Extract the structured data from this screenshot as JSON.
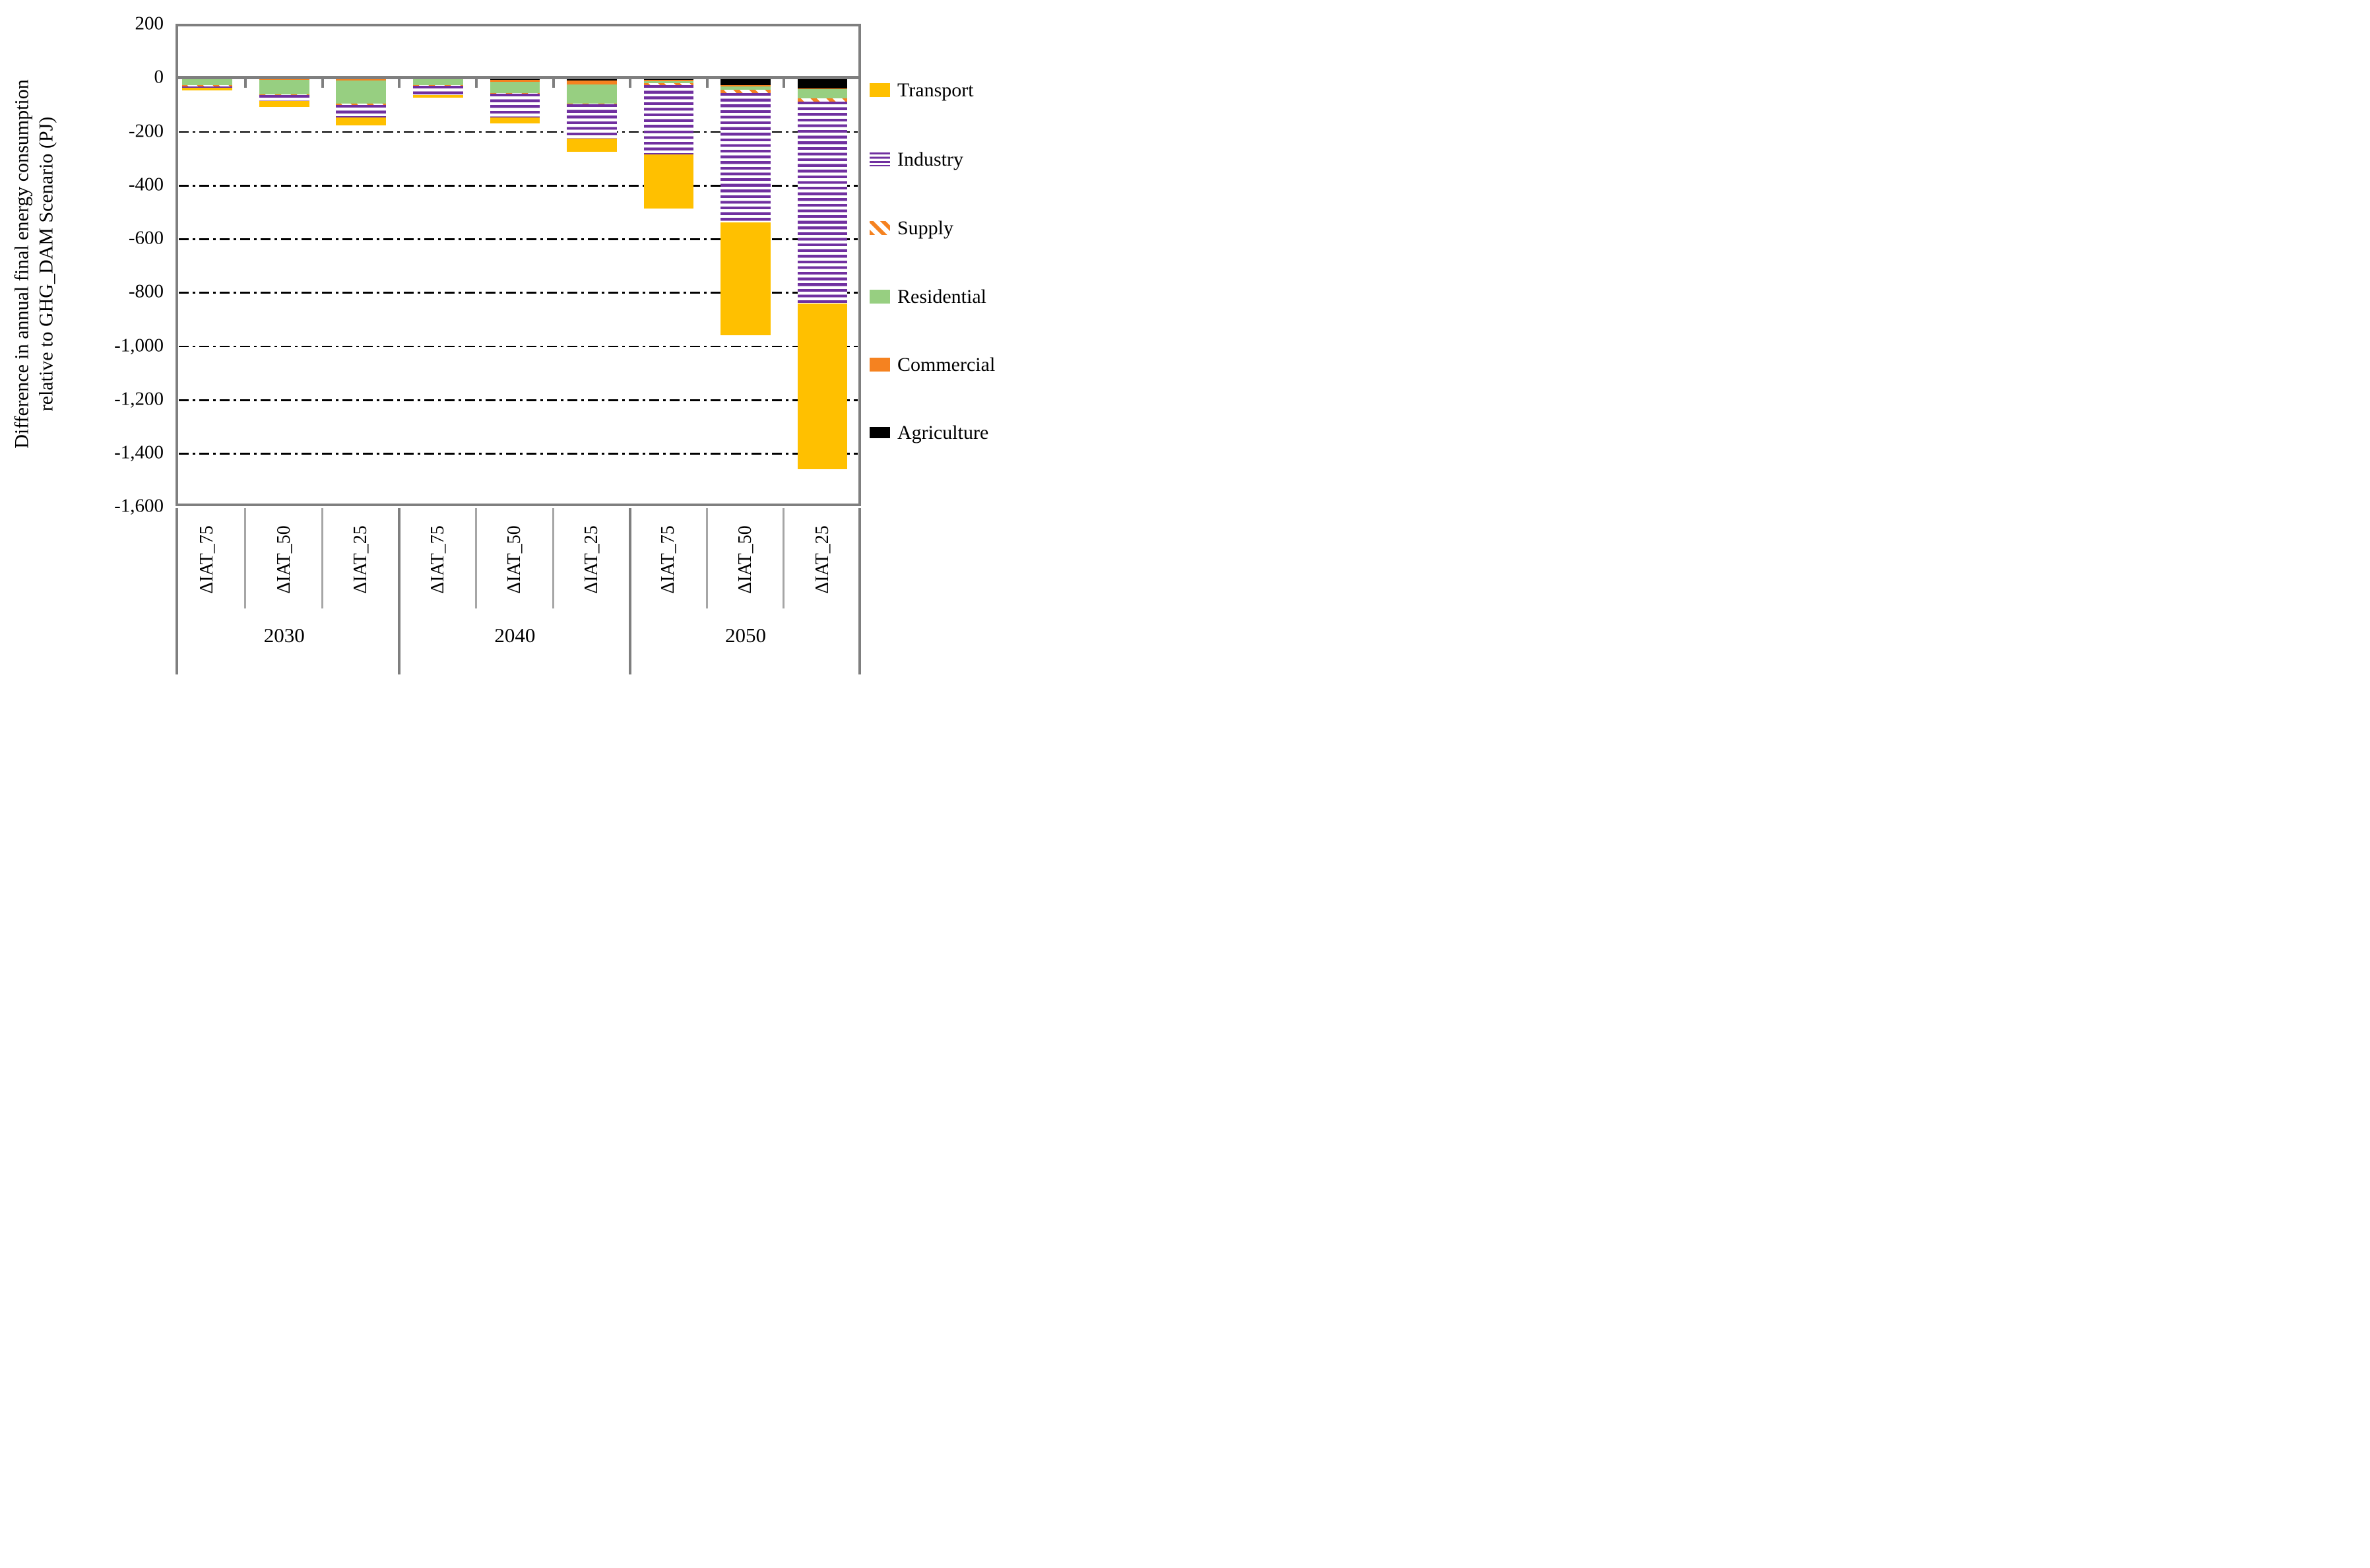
{
  "axis_title_line1": "Difference in annual final energy consumption",
  "axis_title_line2": "relative to GHG_DAM Scenario  (PJ)",
  "y_axis": {
    "ticks": [
      "200",
      "0",
      "-200",
      "-400",
      "-600",
      "-800",
      "-1,000",
      "-1,200",
      "-1,400",
      "-1,600"
    ],
    "min": -1600,
    "max": 200,
    "step": 200
  },
  "chart_data": {
    "type": "bar",
    "stacked": true,
    "unit": "PJ",
    "ylabel": "Difference in annual final energy consumption relative to GHG_DAM Scenario (PJ)",
    "ylim": [
      -1600,
      200
    ],
    "grid": "horizontal dash-dot",
    "legend_position": "right",
    "groups": [
      "2030",
      "2040",
      "2050"
    ],
    "categories": [
      "ΔIAT_75",
      "ΔIAT_50",
      "ΔIAT_25",
      "ΔIAT_75",
      "ΔIAT_50",
      "ΔIAT_25",
      "ΔIAT_75",
      "ΔIAT_50",
      "ΔIAT_25"
    ],
    "stack_order_from_zero": [
      "Agriculture",
      "Commercial",
      "Residential",
      "Supply",
      "Industry",
      "Transport"
    ],
    "series": [
      {
        "name": "Transport",
        "color": "#FFC000",
        "pattern": "solid",
        "values": [
          -10,
          -21,
          -31,
          -9,
          -24,
          -48,
          -201,
          -419,
          -617
        ]
      },
      {
        "name": "Industry",
        "color": "#7030A0",
        "pattern": "horizontal-stripes",
        "values": [
          -6,
          -23,
          -46,
          -35,
          -87,
          -128,
          -258,
          -484,
          -753
        ]
      },
      {
        "name": "Supply",
        "color": "#F58220",
        "pattern": "diagonal-dashes",
        "values": [
          -3,
          -3,
          -4,
          -2,
          -3,
          -4,
          -9,
          -11,
          -13
        ]
      },
      {
        "name": "Residential",
        "color": "#97CF81",
        "pattern": "solid",
        "values": [
          -28,
          -53,
          -86,
          -21,
          -43,
          -70,
          -6,
          -14,
          -35
        ]
      },
      {
        "name": "Commercial",
        "color": "#F58220",
        "pattern": "solid",
        "values": [
          -1,
          -8,
          -12,
          -6,
          -7,
          -14,
          -5,
          -3,
          -3
        ]
      },
      {
        "name": "Agriculture",
        "color": "#000000",
        "pattern": "solid",
        "values": [
          0,
          -1,
          0,
          -1,
          -8,
          -12,
          -9,
          -29,
          -40
        ]
      }
    ],
    "totals": [
      -48,
      -109,
      -179,
      -74,
      -172,
      -276,
      -488,
      -960,
      -1461
    ]
  }
}
